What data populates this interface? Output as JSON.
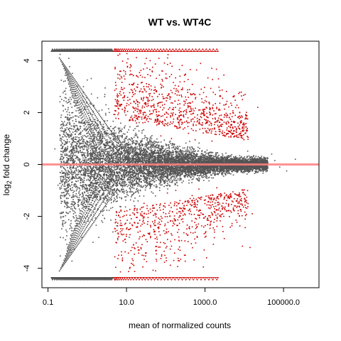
{
  "chart_data": {
    "type": "scatter",
    "title": "WT vs. WT4C",
    "xlabel": "mean of normalized counts",
    "ylabel_main": "log",
    "ylabel_sub": "2",
    "ylabel_rest": " fold change",
    "x_scale": "log10",
    "xlim": [
      0.07,
      800000
    ],
    "ylim": [
      -4.75,
      4.75
    ],
    "x_ticks": [
      {
        "value": 0.1,
        "label": "0.1"
      },
      {
        "value": 10,
        "label": "10.0"
      },
      {
        "value": 1000,
        "label": "1000.0"
      },
      {
        "value": 100000,
        "label": "100000.0"
      }
    ],
    "y_ticks": [
      {
        "value": -4,
        "label": "-4"
      },
      {
        "value": -2,
        "label": "-2"
      },
      {
        "value": 0,
        "label": "0"
      },
      {
        "value": 2,
        "label": "2"
      },
      {
        "value": 4,
        "label": "4"
      }
    ],
    "reference_line_y": 0,
    "clip_value": 4.4,
    "colors": {
      "nonsignificant": "#555555",
      "significant": "#cc0000",
      "reference_line": "#ff7f7f"
    },
    "series": [
      {
        "values": [
          [
            0.15,
            0.6
          ],
          [
            0.22,
            0.9
          ],
          [
            0.3,
            0.4
          ],
          [
            0.45,
            0.2
          ],
          [
            0.6,
            -0.3
          ],
          [
            0.9,
            0.8
          ],
          [
            1.2,
            -0.6
          ],
          [
            1.8,
            0.3
          ],
          [
            2.5,
            -0.2
          ],
          [
            3.5,
            0.5
          ],
          [
            5,
            -0.4
          ],
          [
            8,
            0.3
          ],
          [
            12,
            -0.2
          ],
          [
            20,
            0.4
          ],
          [
            40,
            -0.3
          ],
          [
            80,
            0.2
          ],
          [
            150,
            -0.1
          ],
          [
            300,
            0.15
          ],
          [
            600,
            -0.12
          ],
          [
            1200,
            0.1
          ],
          [
            2500,
            -0.08
          ],
          [
            5000,
            0.1
          ],
          [
            10000,
            -0.15
          ],
          [
            30000,
            0.05
          ],
          [
            80000,
            -0.1
          ],
          [
            200000,
            0.2
          ],
          [
            0.35,
            1.6
          ],
          [
            0.5,
            -1.5
          ],
          [
            0.7,
            2.1
          ],
          [
            1.0,
            -2.0
          ],
          [
            1.5,
            1.4
          ],
          [
            2.2,
            -1.8
          ],
          [
            3.0,
            2.3
          ],
          [
            4.5,
            -2.6
          ],
          [
            7,
            1.1
          ],
          [
            11,
            -1.2
          ],
          [
            18,
            0.9
          ],
          [
            30,
            -0.8
          ],
          [
            55,
            0.7
          ],
          [
            100,
            -0.6
          ],
          [
            220,
            0.5
          ],
          [
            450,
            -0.4
          ],
          [
            900,
            0.35
          ],
          [
            1800,
            -0.3
          ],
          [
            3500,
            0.25
          ],
          [
            7000,
            -0.2
          ],
          [
            15000,
            0.3
          ],
          [
            50000,
            0.4
          ],
          [
            120000,
            -0.25
          ],
          [
            0.18,
            -0.8
          ],
          [
            0.25,
            3.2
          ],
          [
            0.4,
            -3.4
          ],
          [
            0.8,
            3.0
          ],
          [
            1.4,
            -3.0
          ],
          [
            2.8,
            2.7
          ],
          [
            6,
            -2.9
          ],
          [
            9,
            2.0
          ],
          [
            16,
            -1.6
          ],
          [
            25,
            1.3
          ],
          [
            70,
            -1.0
          ],
          [
            130,
            0.9
          ],
          [
            260,
            -0.7
          ],
          [
            520,
            0.6
          ],
          [
            1050,
            -0.5
          ],
          [
            2100,
            0.45
          ],
          [
            4200,
            -0.35
          ],
          [
            8400,
            0.3
          ],
          [
            20000,
            -0.3
          ],
          [
            60000,
            0.15
          ]
        ]
      },
      {
        "values": [
          [
            9,
            2.2
          ],
          [
            12,
            -2.5
          ],
          [
            15,
            3.1
          ],
          [
            20,
            -3.3
          ],
          [
            25,
            2.8
          ],
          [
            35,
            -2.2
          ],
          [
            45,
            3.6
          ],
          [
            60,
            -3.0
          ],
          [
            80,
            2.4
          ],
          [
            100,
            -1.9
          ],
          [
            130,
            3.9
          ],
          [
            160,
            -3.7
          ],
          [
            200,
            1.8
          ],
          [
            250,
            -1.7
          ],
          [
            320,
            2.6
          ],
          [
            400,
            -2.4
          ],
          [
            500,
            1.5
          ],
          [
            650,
            -1.4
          ],
          [
            800,
            2.9
          ],
          [
            1000,
            -2.8
          ],
          [
            1300,
            1.3
          ],
          [
            1700,
            -1.3
          ],
          [
            2200,
            3.3
          ],
          [
            3000,
            -2.0
          ],
          [
            4000,
            1.6
          ],
          [
            6000,
            -1.6
          ],
          [
            9000,
            2.5
          ],
          [
            14000,
            -3.2
          ],
          [
            18,
            1.6
          ],
          [
            28,
            -1.5
          ],
          [
            40,
            4.0
          ],
          [
            55,
            -4.1
          ],
          [
            75,
            1.1
          ],
          [
            110,
            -1.1
          ],
          [
            140,
            1.0
          ],
          [
            180,
            -1.0
          ],
          [
            230,
            3.4
          ],
          [
            300,
            -3.5
          ],
          [
            380,
            1.2
          ],
          [
            470,
            -1.2
          ],
          [
            560,
            0.95
          ],
          [
            700,
            -0.95
          ],
          [
            900,
            2.1
          ],
          [
            1150,
            -2.1
          ],
          [
            1500,
            0.9
          ],
          [
            2000,
            -0.9
          ],
          [
            2600,
            1.9
          ],
          [
            3500,
            -1.8
          ],
          [
            5000,
            1.2
          ],
          [
            7500,
            -1.1
          ],
          [
            11000,
            1.8
          ],
          [
            16000,
            -1.9
          ],
          [
            22000,
            2.2
          ],
          [
            30,
            2.0
          ],
          [
            50,
            -2.6
          ],
          [
            65,
            1.9
          ],
          [
            90,
            -1.6
          ],
          [
            120,
            2.7
          ],
          [
            170,
            -2.9
          ],
          [
            210,
            1.4
          ],
          [
            270,
            -1.5
          ],
          [
            340,
            2.0
          ]
        ]
      }
    ],
    "clipped_top_gray_x_range": [
      0.13,
      4.2
    ],
    "clipped_bottom_gray_x_range": [
      0.13,
      4.2
    ],
    "clipped_top_red_x_range": [
      5,
      2000
    ],
    "clipped_bottom_red_x_range": [
      5,
      2000
    ]
  }
}
